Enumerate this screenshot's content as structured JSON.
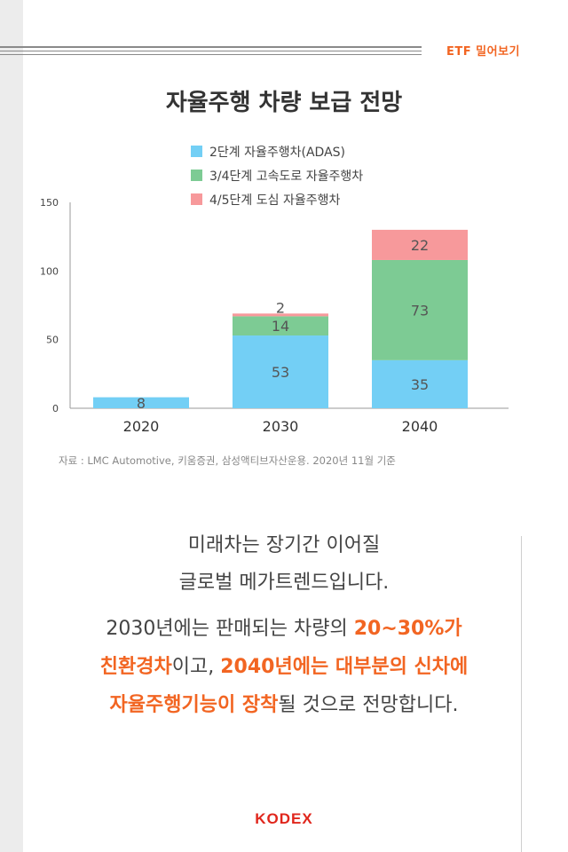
{
  "header": {
    "series_label": "ETF 밀어보기"
  },
  "chart_data": {
    "type": "bar",
    "stacked": true,
    "title": "자율주행 차량 보급 전망",
    "xlabel": "",
    "ylabel": "",
    "categories": [
      "2020",
      "2030",
      "2040"
    ],
    "ylim": [
      0,
      150
    ],
    "yticks": [
      0,
      50,
      100,
      150
    ],
    "legend_position": "top",
    "series": [
      {
        "name": "2단계 자율주행차(ADAS)",
        "color": "#73cff5",
        "values": [
          8,
          53,
          35
        ],
        "labels": [
          "8",
          "53",
          "35"
        ]
      },
      {
        "name": "3/4단계 고속도로 자율주행차",
        "color": "#7dcb94",
        "values": [
          null,
          14,
          73
        ],
        "labels": [
          "",
          "14",
          "73"
        ]
      },
      {
        "name": "4/5단계 도심 자율주행차",
        "color": "#f7999b",
        "values": [
          null,
          2,
          22
        ],
        "labels": [
          "",
          "2",
          "22"
        ]
      }
    ],
    "source": "자료 : LMC Automotive, 키움증권, 삼성액티브자산운용. 2020년 11월  기준"
  },
  "message": {
    "line1": "미래차는 장기간 이어질",
    "line2": "글로벌 메가트렌드입니다.",
    "p2_a": "2030년에는 판매되는 차량의 ",
    "p2_b": "20~30%가",
    "p2_c": "친환경차",
    "p2_d": "이고, ",
    "p2_e": "2040년에는 대부분의 신차에",
    "p2_f": "자율주행기능이 장착",
    "p2_g": "될 것으로 전망합니다."
  },
  "footer": {
    "logo": "KODEX"
  }
}
